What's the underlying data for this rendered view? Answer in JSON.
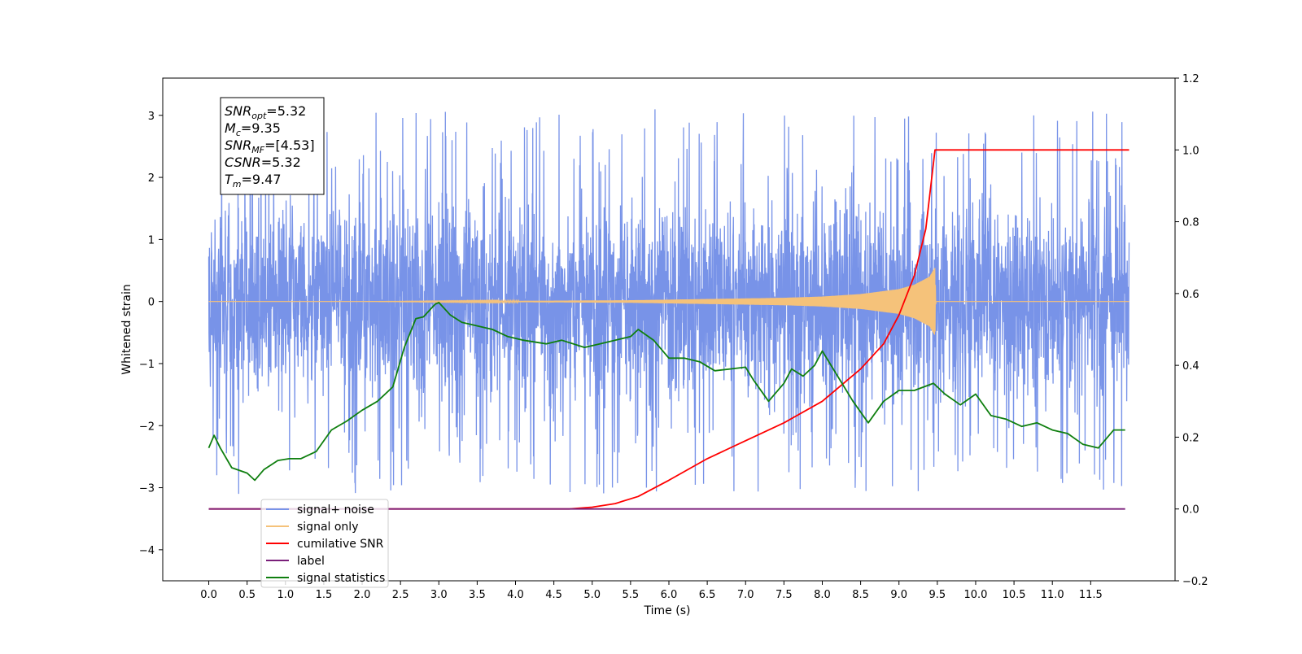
{
  "chart_data": {
    "type": "line",
    "xlabel": "Time (s)",
    "ylabel_left": "Whitened strain",
    "ylabel_right": "",
    "xlim": [
      -0.6,
      12.6
    ],
    "ylim_left": [
      -4.5,
      3.6
    ],
    "ylim_right": [
      -0.2,
      1.2
    ],
    "x_ticks": [
      0.0,
      0.5,
      1.0,
      1.5,
      2.0,
      2.5,
      3.0,
      3.5,
      4.0,
      4.5,
      5.0,
      5.5,
      6.0,
      6.5,
      7.0,
      7.5,
      8.0,
      8.5,
      9.0,
      9.5,
      10.0,
      10.5,
      11.0,
      11.5
    ],
    "x_tick_labels": [
      "0.0",
      "0.5",
      "1.0",
      "1.5",
      "2.0",
      "2.5",
      "3.0",
      "3.5",
      "4.0",
      "4.5",
      "5.0",
      "5.5",
      "6.0",
      "6.5",
      "7.0",
      "7.5",
      "8.0",
      "8.5",
      "9.0",
      "9.5",
      "10.0",
      "10.5",
      "11.0",
      "11.5"
    ],
    "y_ticks_left": [
      3,
      2,
      1,
      0,
      -1,
      -2,
      -3,
      -4
    ],
    "y_tick_labels_left": [
      "3",
      "2",
      "1",
      "0",
      "−1",
      "−2",
      "−3",
      "−4"
    ],
    "y_ticks_right": [
      1.2,
      1.0,
      0.8,
      0.6,
      0.4,
      0.2,
      0.0,
      -0.2
    ],
    "y_tick_labels_right": [
      "1.2",
      "1.0",
      "0.8",
      "0.6",
      "0.4",
      "0.2",
      "0.0",
      "−0.2"
    ],
    "grid": false,
    "legend_position": "lower-left",
    "series": [
      {
        "name": "signal+ noise",
        "axis": "left",
        "color": "#7893e8",
        "description_range": {
          "x_start": 0.0,
          "x_end": 12.0,
          "typical_min": -2.0,
          "typical_max": 2.2,
          "peak_max": 3.25,
          "peak_min": -3.35
        }
      },
      {
        "name": "signal only",
        "axis": "left",
        "color": "#f5c27a",
        "envelope": {
          "x": [
            0.0,
            2.0,
            4.0,
            5.5,
            6.5,
            7.5,
            8.0,
            8.5,
            9.0,
            9.2,
            9.4,
            9.47,
            9.48,
            12.0
          ],
          "amplitude": [
            0.0,
            0.0,
            0.01,
            0.02,
            0.04,
            0.06,
            0.08,
            0.12,
            0.2,
            0.27,
            0.4,
            0.55,
            0.0,
            0.0
          ]
        }
      },
      {
        "name": "cumilative SNR",
        "axis": "right",
        "color": "#ff0000",
        "x": [
          0.0,
          4.5,
          4.7,
          5.0,
          5.3,
          5.6,
          6.0,
          6.5,
          7.0,
          7.5,
          8.0,
          8.5,
          8.8,
          9.0,
          9.2,
          9.35,
          9.47,
          9.48,
          12.0
        ],
        "y": [
          0.0,
          0.0,
          0.0,
          0.005,
          0.015,
          0.035,
          0.08,
          0.14,
          0.19,
          0.24,
          0.3,
          0.39,
          0.46,
          0.54,
          0.65,
          0.78,
          1.0,
          1.0,
          1.0
        ]
      },
      {
        "name": "label",
        "axis": "right",
        "color": "#7a1f7a",
        "x": [
          0.0,
          11.95
        ],
        "y": [
          0.0,
          0.0
        ]
      },
      {
        "name": "signal statistics",
        "axis": "right",
        "color": "#0f7f0f",
        "x": [
          0.0,
          0.07,
          0.15,
          0.3,
          0.5,
          0.6,
          0.72,
          0.9,
          1.05,
          1.2,
          1.4,
          1.6,
          1.8,
          2.0,
          2.2,
          2.4,
          2.55,
          2.7,
          2.8,
          2.95,
          3.0,
          3.15,
          3.3,
          3.5,
          3.7,
          3.9,
          4.1,
          4.4,
          4.6,
          4.9,
          5.1,
          5.3,
          5.5,
          5.6,
          5.8,
          6.0,
          6.2,
          6.4,
          6.6,
          6.8,
          7.0,
          7.1,
          7.3,
          7.5,
          7.6,
          7.75,
          7.9,
          8.0,
          8.2,
          8.4,
          8.6,
          8.8,
          9.0,
          9.2,
          9.45,
          9.6,
          9.8,
          10.0,
          10.2,
          10.4,
          10.6,
          10.8,
          11.0,
          11.2,
          11.4,
          11.6,
          11.8,
          11.95
        ],
        "y": [
          0.17,
          0.205,
          0.17,
          0.115,
          0.1,
          0.08,
          0.11,
          0.135,
          0.14,
          0.14,
          0.16,
          0.22,
          0.245,
          0.275,
          0.3,
          0.34,
          0.45,
          0.53,
          0.535,
          0.57,
          0.575,
          0.54,
          0.52,
          0.51,
          0.5,
          0.48,
          0.47,
          0.46,
          0.47,
          0.45,
          0.46,
          0.47,
          0.48,
          0.5,
          0.47,
          0.42,
          0.42,
          0.41,
          0.385,
          0.39,
          0.395,
          0.36,
          0.3,
          0.35,
          0.39,
          0.37,
          0.4,
          0.44,
          0.37,
          0.3,
          0.24,
          0.3,
          0.33,
          0.33,
          0.35,
          0.32,
          0.29,
          0.32,
          0.26,
          0.25,
          0.23,
          0.24,
          0.22,
          0.21,
          0.18,
          0.17,
          0.22,
          0.22
        ]
      }
    ],
    "annotation": {
      "lines": [
        {
          "main": "SNR",
          "sub": "opt",
          "rest": "=5.32"
        },
        {
          "main": "M",
          "sub": "c",
          "rest": "=9.35"
        },
        {
          "main": "SNR",
          "sub": "MF",
          "rest": "=[4.53]"
        },
        {
          "main": "CSNR",
          "sub": "",
          "rest": "=5.32"
        },
        {
          "main": "T",
          "sub": "m",
          "rest": "=9.47"
        }
      ]
    },
    "legend": [
      {
        "label": "signal+ noise",
        "color": "#7893e8"
      },
      {
        "label": "signal only",
        "color": "#f5c27a"
      },
      {
        "label": "cumilative SNR",
        "color": "#ff0000"
      },
      {
        "label": "label",
        "color": "#7a1f7a"
      },
      {
        "label": "signal statistics",
        "color": "#0f7f0f"
      }
    ]
  }
}
